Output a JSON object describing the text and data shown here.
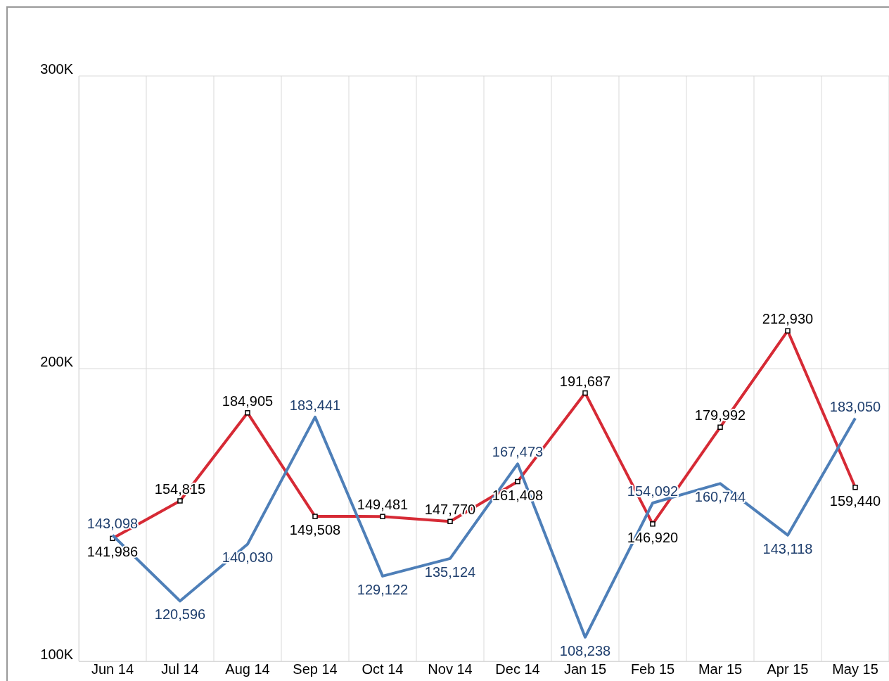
{
  "chart_data": {
    "type": "line",
    "categories": [
      "Jun 14",
      "Jul 14",
      "Aug 14",
      "Sep 14",
      "Oct 14",
      "Nov 14",
      "Dec 14",
      "Jan 15",
      "Feb 15",
      "Mar 15",
      "Apr 15",
      "May 15"
    ],
    "series": [
      {
        "color": "#d62a35",
        "marker": "square",
        "values": [
          141986,
          154815,
          184905,
          149508,
          149481,
          147770,
          161408,
          191687,
          146920,
          179992,
          212930,
          159440
        ],
        "value_labels": [
          "141,986",
          "154,815",
          "184,905",
          "149,508",
          "149,481",
          "147,770",
          "161,408",
          "191,687",
          "146,920",
          "179,992",
          "212,930",
          "159,440"
        ]
      },
      {
        "color": "#4e7fb8",
        "marker": "none",
        "values": [
          143098,
          120596,
          140030,
          183441,
          129122,
          135124,
          167473,
          108238,
          154092,
          160744,
          143118,
          183050
        ],
        "value_labels": [
          "143,098",
          "120,596",
          "140,030",
          "183,441",
          "129,122",
          "135,124",
          "167,473",
          "108,238",
          "154,092",
          "160,744",
          "143,118",
          "183,050"
        ]
      }
    ],
    "ylim": [
      100000,
      300000
    ],
    "yticks": [
      {
        "value": 100000,
        "label": "100K"
      },
      {
        "value": 200000,
        "label": "200K"
      },
      {
        "value": 300000,
        "label": "300K"
      }
    ],
    "grid": true
  }
}
